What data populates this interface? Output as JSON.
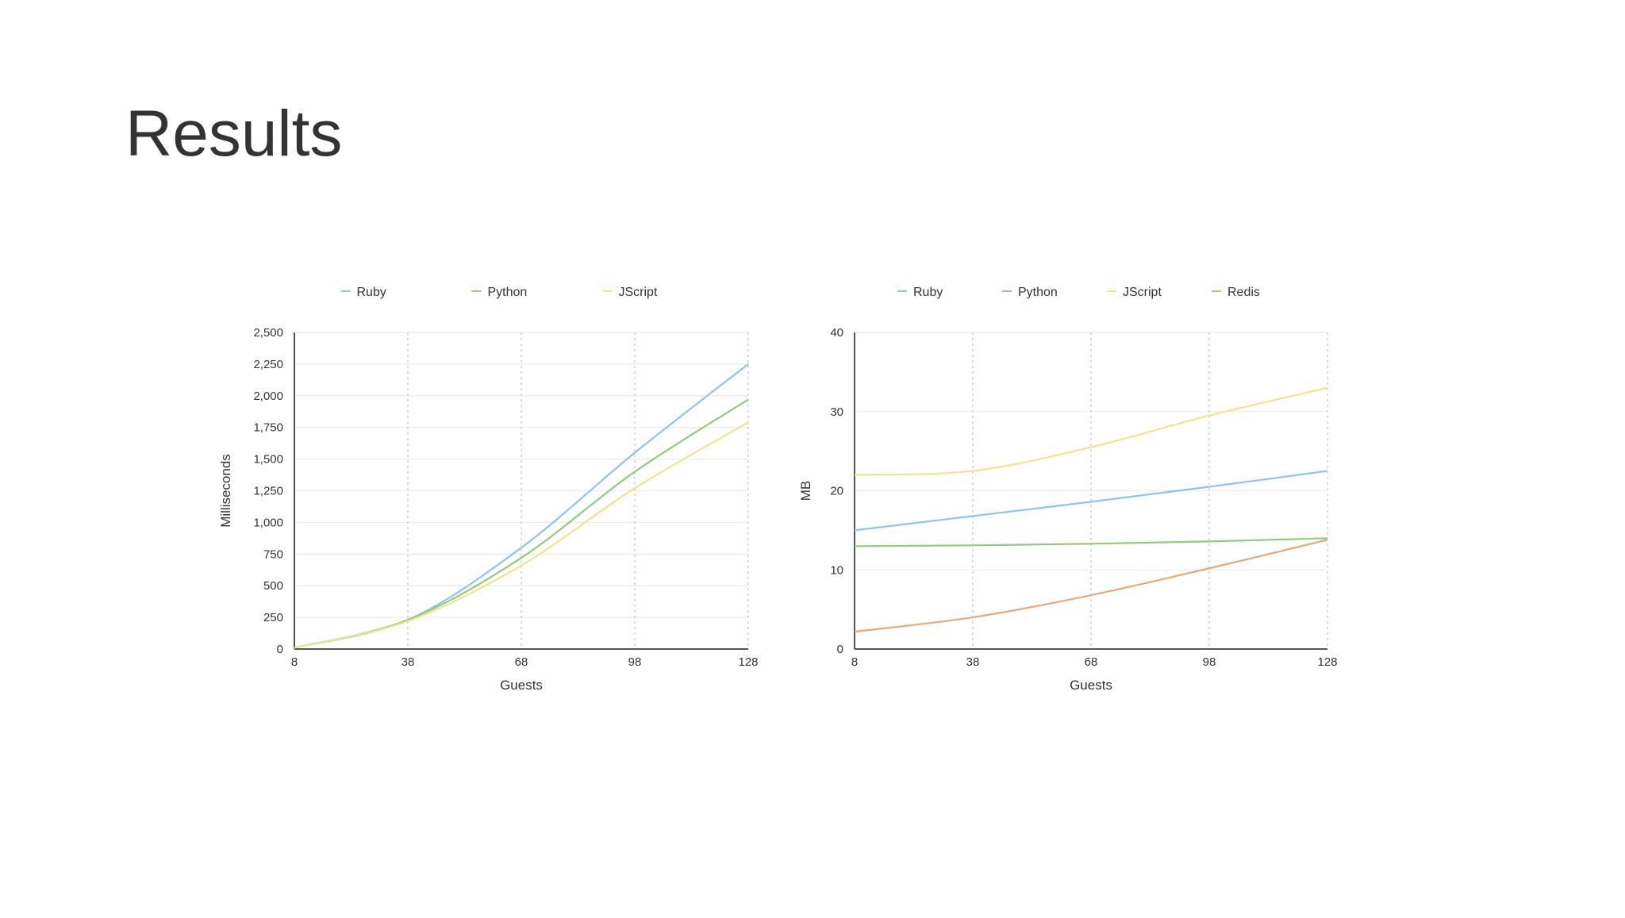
{
  "title": "Results",
  "chart_data": [
    {
      "type": "line",
      "x": [
        8,
        38,
        68,
        98,
        128
      ],
      "xlim": [
        8,
        128
      ],
      "xticks": [
        8,
        38,
        68,
        98,
        128
      ],
      "ylim": [
        0,
        2500
      ],
      "yticks": [
        0,
        250,
        500,
        750,
        {
          "value": 1000,
          "label": "1,000"
        },
        {
          "value": 1250,
          "label": "1,250"
        },
        {
          "value": 1500,
          "label": "1,500"
        },
        {
          "value": 1750,
          "label": "1,750"
        },
        {
          "value": 2000,
          "label": "2,000"
        },
        {
          "value": 2250,
          "label": "2,250"
        },
        {
          "value": 2500,
          "label": "2,500"
        }
      ],
      "x_label": "Guests",
      "y_label": "Milliseconds",
      "grid": true,
      "series": [
        {
          "name": "Ruby",
          "color": "#90c3e8",
          "values": [
            10,
            230,
            800,
            1550,
            2250
          ]
        },
        {
          "name": "Python",
          "color": "#94c97e",
          "values": [
            10,
            230,
            720,
            1400,
            1970
          ]
        },
        {
          "name": "JScript",
          "color": "#f0e58a",
          "values": [
            10,
            220,
            660,
            1270,
            1790
          ]
        }
      ]
    },
    {
      "type": "line",
      "x": [
        8,
        38,
        68,
        98,
        128
      ],
      "xlim": [
        8,
        128
      ],
      "xticks": [
        8,
        38,
        68,
        98,
        128
      ],
      "ylim": [
        0,
        40
      ],
      "yticks": [
        0,
        10,
        20,
        30,
        40
      ],
      "x_label": "Guests",
      "y_label": "MB",
      "grid": true,
      "series": [
        {
          "name": "Ruby",
          "color": "#90c3e8",
          "values": [
            15,
            16.8,
            18.6,
            20.5,
            22.5
          ]
        },
        {
          "name": "Python",
          "color": "#94c97e",
          "values": [
            13,
            13.1,
            13.3,
            13.6,
            14
          ]
        },
        {
          "name": "JScript",
          "color": "#f0e58a",
          "values": [
            22,
            22.5,
            25.5,
            29.5,
            33
          ]
        },
        {
          "name": "Redis",
          "color": "#e8a878",
          "values": [
            2.2,
            4,
            6.8,
            10.2,
            13.8
          ]
        }
      ]
    }
  ]
}
